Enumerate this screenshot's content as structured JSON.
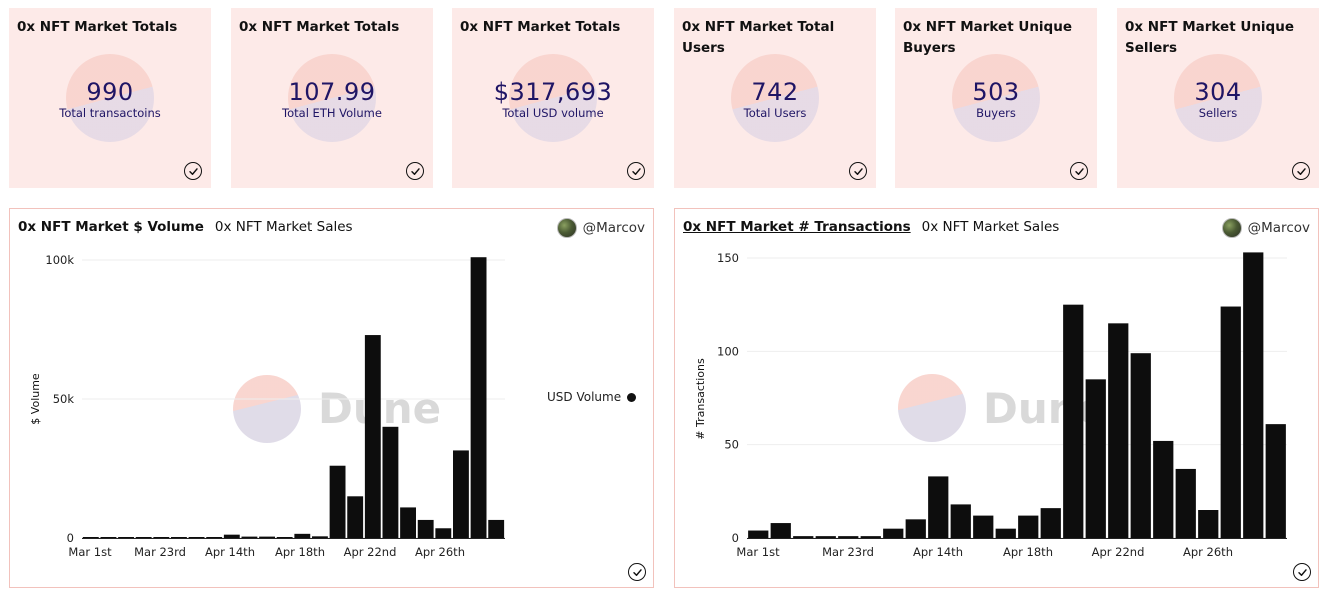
{
  "counters": [
    {
      "title": "0x NFT Market Totals",
      "value": "990",
      "label": "Total transactoins"
    },
    {
      "title": "0x NFT Market Totals",
      "value": "107.99",
      "label": "Total ETH Volume"
    },
    {
      "title": "0x NFT Market Totals",
      "value": "$317,693",
      "label": "Total USD volume"
    },
    {
      "title": "0x NFT Market Total Users",
      "value": "742",
      "label": "Total Users"
    },
    {
      "title": "0x NFT Market Unique Buyers",
      "value": "503",
      "label": "Buyers"
    },
    {
      "title": "0x NFT Market Unique Sellers",
      "value": "304",
      "label": "Sellers"
    }
  ],
  "watermark": "Dune",
  "colors": {
    "card_bg": "#fdeae8",
    "counter_text": "#1f1565",
    "bar": "#0d0d0d",
    "chart_border": "#f2c2bc"
  },
  "charts": [
    {
      "tabs": [
        {
          "label": "0x NFT Market $ Volume",
          "active": true,
          "underlined": false
        },
        {
          "label": "0x NFT Market Sales",
          "active": false,
          "underlined": false
        }
      ],
      "author": "@Marcov",
      "legend": "USD Volume"
    },
    {
      "tabs": [
        {
          "label": "0x NFT Market # Transactions",
          "active": true,
          "underlined": true
        },
        {
          "label": "0x NFT Market Sales",
          "active": false,
          "underlined": false
        }
      ],
      "author": "@Marcov",
      "legend": ""
    }
  ],
  "chart_data": [
    {
      "type": "bar",
      "title": "0x NFT Market $ Volume",
      "ylabel": "$ Volume",
      "ylim": [
        0,
        100000
      ],
      "yticks": [
        0,
        50000,
        100000
      ],
      "ytick_labels": [
        "0",
        "50k",
        "100k"
      ],
      "xtick_labels": [
        "Mar 1st",
        "Mar 23rd",
        "Apr 14th",
        "Apr 18th",
        "Apr 22nd",
        "Apr 26th"
      ],
      "grid": true,
      "legend_position": "right",
      "series": [
        {
          "name": "USD Volume",
          "values": [
            0,
            0,
            0,
            0,
            0,
            0,
            0,
            300,
            1200,
            500,
            500,
            0,
            1500,
            600,
            26000,
            15000,
            73000,
            40000,
            11000,
            6500,
            3500,
            31500,
            101000,
            6500
          ]
        }
      ]
    },
    {
      "type": "bar",
      "title": "0x NFT Market # Transactions",
      "ylabel": "# Transactions",
      "ylim": [
        0,
        150
      ],
      "yticks": [
        0,
        50,
        100,
        150
      ],
      "ytick_labels": [
        "0",
        "50",
        "100",
        "150"
      ],
      "xtick_labels": [
        "Mar 1st",
        "Mar 23rd",
        "Apr 14th",
        "Apr 18th",
        "Apr 22nd",
        "Apr 26th"
      ],
      "grid": true,
      "series": [
        {
          "name": "",
          "values": [
            4,
            8,
            1,
            1,
            1,
            1,
            5,
            10,
            33,
            18,
            12,
            5,
            12,
            16,
            125,
            85,
            115,
            99,
            52,
            37,
            15,
            124,
            153,
            61
          ]
        }
      ]
    }
  ]
}
